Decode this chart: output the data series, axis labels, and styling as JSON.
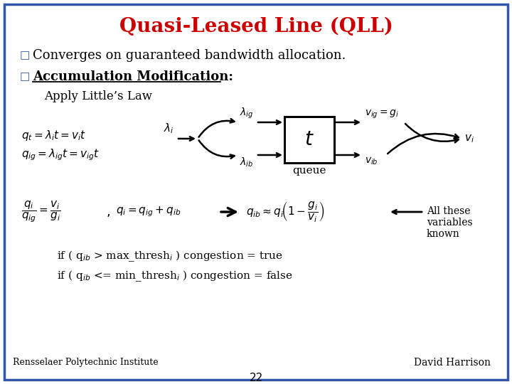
{
  "title": "Quasi-Leased Line (QLL)",
  "title_color": "#CC0000",
  "background_color": "#FFFFFF",
  "border_color": "#3355AA",
  "bullet1": "Converges on guaranteed bandwidth allocation.",
  "bullet2": "Accumulation Modification:",
  "bullet3": "Apply Little’s Law",
  "footer_left": "Rensselaer Polytechnic Institute",
  "footer_right": "David Harrison",
  "page_number": "22",
  "all_these": "All these\nvariables\nknown",
  "queue_label": "queue",
  "title_fontsize": 20,
  "body_fontsize": 13,
  "eq_fontsize": 11,
  "small_fontsize": 9
}
